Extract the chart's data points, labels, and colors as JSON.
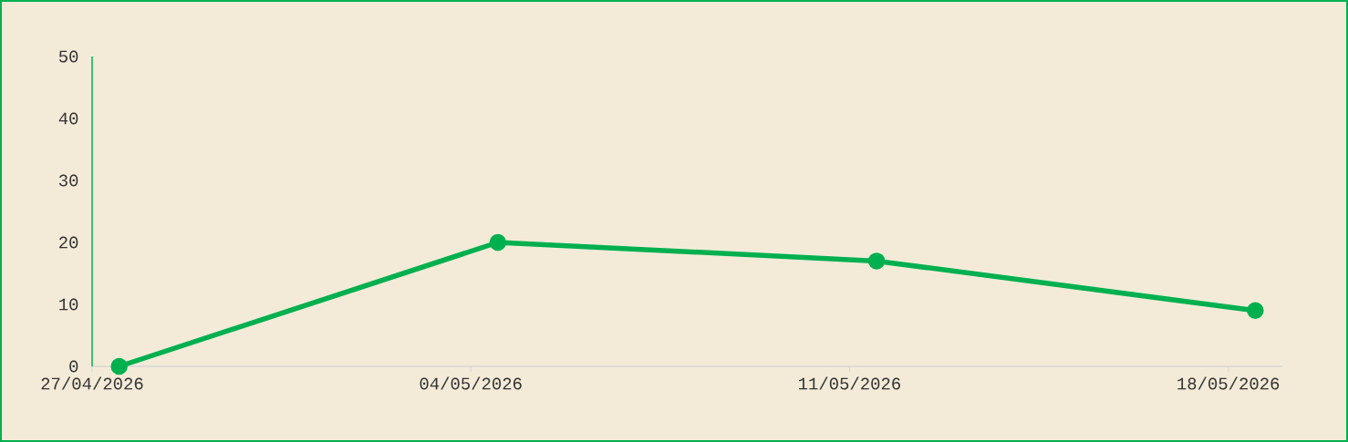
{
  "chart_data": {
    "type": "line",
    "x": [
      "2026-04-27T12:00",
      "2026-05-04T12:00",
      "2026-05-11T12:00",
      "2026-05-18T12:00"
    ],
    "series": [
      {
        "color": "#00b04f",
        "values": [
          0,
          20,
          17,
          9
        ]
      }
    ],
    "xlim": [
      "2026-04-27",
      "2026-05-19"
    ],
    "xticks": [
      {
        "value": "2026-04-27",
        "label": "27/04/2026"
      },
      {
        "value": "2026-05-04",
        "label": "04/05/2026"
      },
      {
        "value": "2026-05-11",
        "label": "11/05/2026"
      },
      {
        "value": "2026-05-18",
        "label": "18/05/2026"
      }
    ],
    "ylim": [
      0,
      50
    ],
    "yticks": [
      0,
      10,
      20,
      30,
      40,
      50
    ],
    "marker": "circle",
    "line_style": "solid",
    "grid": false,
    "legend": false
  }
}
